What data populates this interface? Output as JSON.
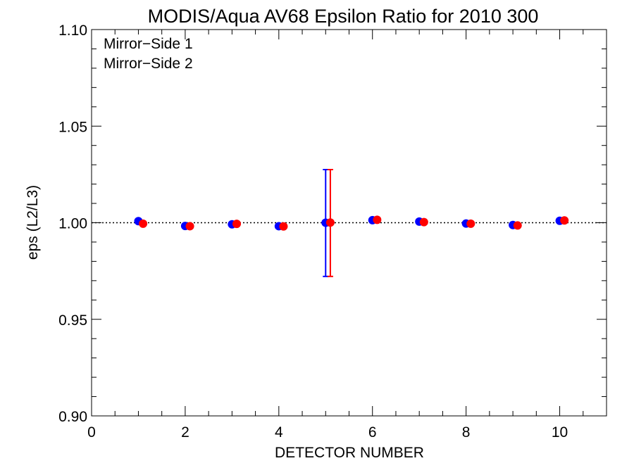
{
  "chart_data": {
    "type": "scatter",
    "title": "MODIS/Aqua AV68 Epsilon Ratio for 2010 300",
    "xlabel": "DETECTOR NUMBER",
    "ylabel": "eps (L2/L3)",
    "xlim": [
      0,
      11
    ],
    "ylim": [
      0.9,
      1.1
    ],
    "x_ticks": [
      0,
      2,
      4,
      6,
      8,
      10
    ],
    "x_tick_labels": [
      "0",
      "2",
      "4",
      "6",
      "8",
      "10"
    ],
    "y_ticks": [
      0.9,
      0.95,
      1.0,
      1.05,
      1.1
    ],
    "y_tick_labels": [
      "0.90",
      "0.95",
      "1.00",
      "1.05",
      "1.10"
    ],
    "reference_line": 1.0,
    "grid": false,
    "legend_position": "top-left",
    "series": [
      {
        "name": "Mirror−Side 1",
        "color": "#0000ff",
        "x": [
          1,
          2,
          3,
          4,
          5,
          6,
          7,
          8,
          9,
          10
        ],
        "y": [
          1.0008,
          0.9983,
          0.9992,
          0.9982,
          1.0,
          1.0013,
          1.0006,
          0.9996,
          0.9988,
          1.001
        ],
        "error_bars": [
          {
            "x": 5,
            "low": 0.9722,
            "high": 1.0275
          }
        ]
      },
      {
        "name": "Mirror−Side 2",
        "color": "#ff0000",
        "x": [
          1.1,
          2.1,
          3.1,
          4.1,
          5.1,
          6.1,
          7.1,
          8.1,
          9.1,
          10.1
        ],
        "y": [
          0.9995,
          0.9982,
          0.9994,
          0.9981,
          1.0001,
          1.0015,
          1.0003,
          0.9995,
          0.9986,
          1.0012
        ],
        "error_bars": [
          {
            "x": 5.1,
            "low": 0.9722,
            "high": 1.0275
          }
        ]
      }
    ]
  }
}
